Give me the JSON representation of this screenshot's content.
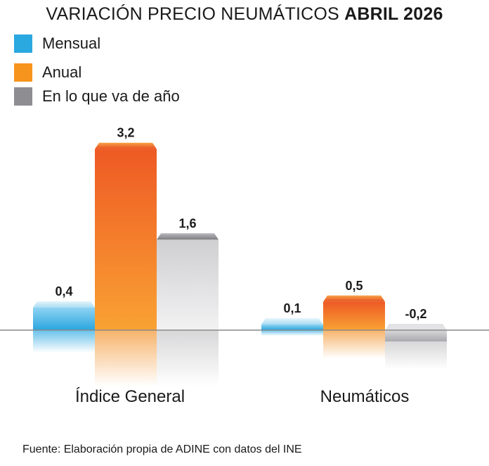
{
  "title": {
    "main": "VARIACIÓN PRECIO NEUMÁTICOS",
    "bold": "ABRIL 2026"
  },
  "source": "Fuente: Elaboración propia de ADINE con datos del INE",
  "colors": {
    "mensual": "#3bb0e4",
    "anual": "#f5921e",
    "ytd": "#c9c9cb"
  },
  "chart_data": {
    "type": "bar",
    "categories": [
      "Índice General",
      "Neumáticos"
    ],
    "series": [
      {
        "name": "Mensual",
        "values": [
          0.4,
          0.1
        ],
        "labels": [
          "0,4",
          "0,1"
        ]
      },
      {
        "name": "Anual",
        "values": [
          3.2,
          0.5
        ],
        "labels": [
          "3,2",
          "0,5"
        ]
      },
      {
        "name": "En lo que va de año",
        "values": [
          1.6,
          -0.2
        ],
        "labels": [
          "1,6",
          "-0,2"
        ]
      }
    ],
    "legend": "top-left",
    "grid": false
  }
}
